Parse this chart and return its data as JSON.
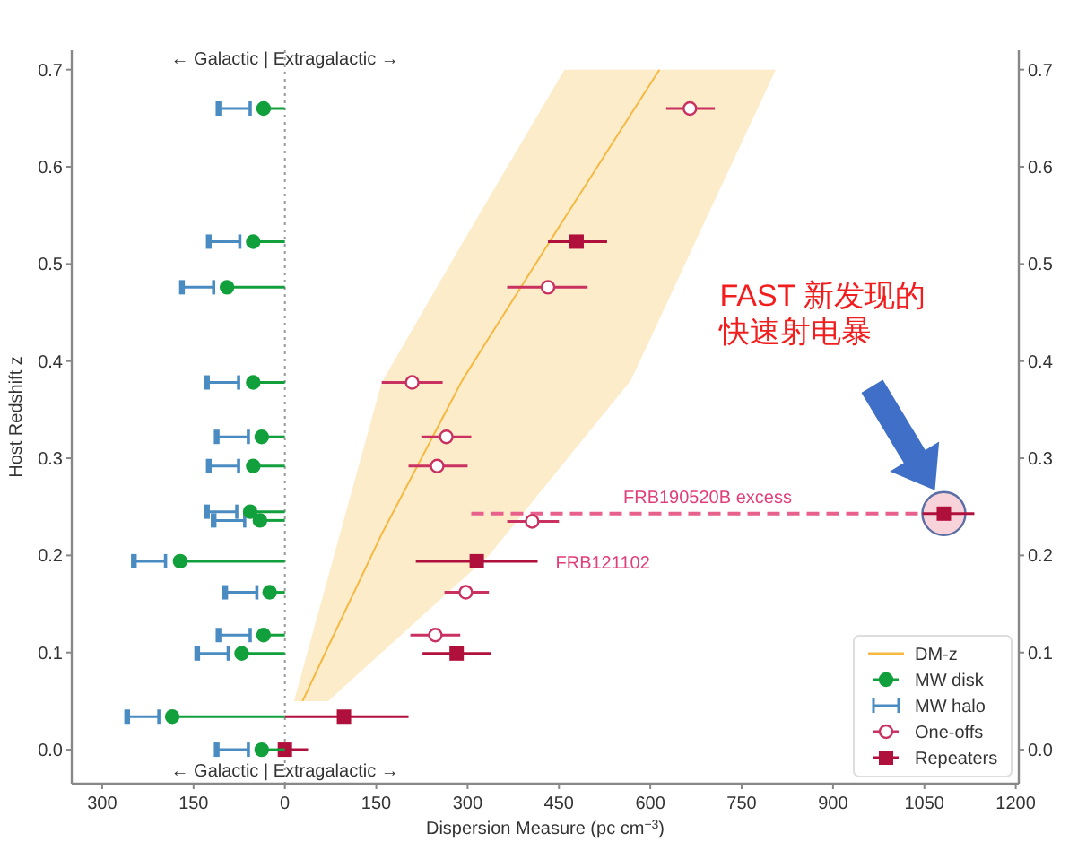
{
  "chart_data": {
    "type": "scatter",
    "xlabel": "Dispersion Measure (pc cm$^{−3}$)",
    "ylabel": "Host Redshift z",
    "xlim": [
      -350,
      1205
    ],
    "xticks": [
      {
        "value": -300,
        "label": "300"
      },
      {
        "value": -150,
        "label": "150"
      },
      0,
      150,
      300,
      450,
      600,
      750,
      900,
      1050,
      1200
    ],
    "ylim": [
      -0.035,
      0.72
    ],
    "yticks": [
      {
        "value": 0,
        "label": "0.0"
      },
      0.1,
      0.2,
      0.3,
      0.4,
      0.5,
      0.6,
      0.7
    ],
    "y2lim": [
      -0.035,
      0.72
    ],
    "y2ticks": [
      {
        "value": 0,
        "label": "0.0"
      },
      0.1,
      0.2,
      0.3,
      0.4,
      0.5,
      0.6,
      0.7
    ],
    "grid": false,
    "legend": "bottom right",
    "ref_lines": [
      {
        "axis": "x",
        "value": 0,
        "color": "#999999",
        "line_style": "dotted"
      }
    ],
    "annotations": [
      "← Galactic | Extragalactic →",
      "← Galactic | Extragalactic →",
      {
        "text": "FRB190520B excess",
        "x": 694,
        "y": 0.243
      },
      {
        "text": "FRB121102",
        "x": 415,
        "y": 0.194
      },
      "FAST 新发现的快速射电暴"
    ],
    "series": [
      {
        "name": "DM-z",
        "type": "line",
        "color": "#f5b942",
        "x": [
          15,
          29,
          71,
          159,
          291,
          335,
          459,
          568,
          615,
          694,
          806
        ],
        "values": [
          null,
          0.05,
          0.106,
          0.222,
          0.38,
          0.424,
          0.547,
          0.654,
          0.7,
          null,
          null
        ],
        "lower": [
          0.05,
          0.05,
          0.05,
          0.1,
          0.175,
          0.2,
          0.296,
          0.38,
          0.443,
          0.55,
          0.7
        ],
        "upper": [
          0.05,
          0.082,
          0.178,
          0.378,
          0.521,
          0.568,
          0.7,
          0.7,
          0.7,
          0.7,
          0.7
        ]
      },
      {
        "type": "line",
        "color": "#e8608c",
        "line_style": "dashed",
        "x": [
          306,
          1082
        ],
        "values": [
          0.243,
          0.243
        ]
      },
      {
        "name": "MW disk",
        "marker": "circle",
        "color": "#11a03c",
        "x": [
          -35,
          -52,
          -95,
          -52,
          -38,
          -52,
          -57,
          -41,
          -172,
          -25,
          -35,
          -71,
          -185,
          -38
        ],
        "values": [
          0.66,
          0.523,
          0.476,
          0.378,
          0.322,
          0.292,
          0.245,
          0.236,
          0.194,
          0.162,
          0.118,
          0.099,
          0.034,
          0.0
        ],
        "xerrors": [
          [
            -35,
            0
          ],
          [
            -52,
            0
          ],
          [
            -95,
            0
          ],
          [
            -52,
            0
          ],
          [
            -38,
            0
          ],
          [
            -52,
            0
          ],
          [
            -57,
            0
          ],
          [
            -41,
            0
          ],
          [
            -172,
            0
          ],
          [
            -25,
            0
          ],
          [
            -35,
            0
          ],
          [
            -71,
            0
          ],
          [
            -185,
            0
          ],
          [
            -38,
            0
          ]
        ]
      },
      {
        "name": "MW halo",
        "color": "#4a8cc2",
        "x": [
          -109,
          -125,
          -169,
          -128,
          -112,
          -125,
          -128,
          -117,
          -248,
          -98,
          -109,
          -144,
          -259,
          -112
        ],
        "values": [
          0.66,
          0.523,
          0.476,
          0.378,
          0.322,
          0.292,
          0.245,
          0.236,
          0.194,
          0.162,
          0.118,
          0.099,
          0.034,
          0.0
        ],
        "xerrors": [
          [
            -109,
            -57
          ],
          [
            -125,
            -74
          ],
          [
            -169,
            -117
          ],
          [
            -128,
            -76
          ],
          [
            -112,
            -60
          ],
          [
            -125,
            -76
          ],
          [
            -128,
            -79
          ],
          [
            -117,
            -66
          ],
          [
            -248,
            -196
          ],
          [
            -98,
            -46
          ],
          [
            -109,
            -57
          ],
          [
            -144,
            -93
          ],
          [
            -259,
            -207
          ],
          [
            -112,
            -60
          ]
        ]
      },
      {
        "name": "One-offs",
        "marker": "circle",
        "color": "#c93160",
        "x": [
          665,
          432,
          209,
          265,
          250,
          406,
          297,
          247
        ],
        "values": [
          0.66,
          0.476,
          0.378,
          0.322,
          0.292,
          0.235,
          0.162,
          0.118
        ],
        "xerrors": [
          [
            626,
            706
          ],
          [
            365,
            497
          ],
          [
            159,
            259
          ],
          [
            224,
            306
          ],
          [
            203,
            300
          ],
          [
            365,
            450
          ],
          [
            262,
            335
          ],
          [
            206,
            288
          ]
        ]
      },
      {
        "name": "Repeaters",
        "marker": "square",
        "color": "#b0103c",
        "x": [
          479,
          1082,
          315,
          282,
          97,
          0
        ],
        "values": [
          0.523,
          0.243,
          0.194,
          0.099,
          0.034,
          0.0
        ],
        "xerrors": [
          [
            432,
            529
          ],
          [
            1047,
            1132
          ],
          [
            215,
            415
          ],
          [
            226,
            338
          ],
          [
            0,
            203
          ],
          [
            -12,
            38
          ]
        ]
      }
    ]
  }
}
